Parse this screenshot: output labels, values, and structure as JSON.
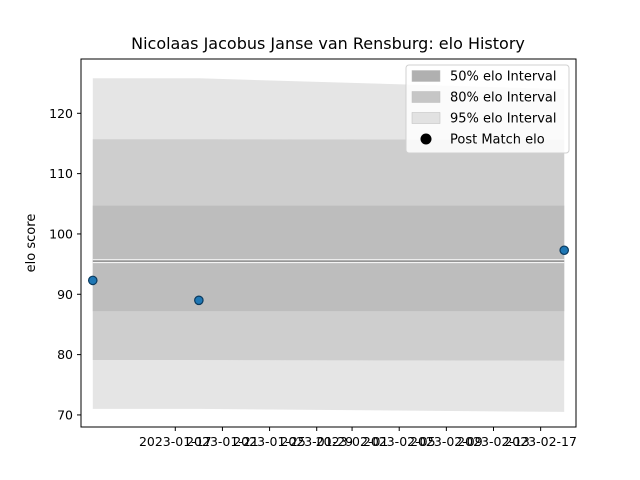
{
  "chart_data": {
    "type": "area",
    "title": "Nicolaas Jacobus Janse van Rensburg: elo History",
    "xlabel": "",
    "ylabel": "elo score",
    "xlim": [
      "2023-01-09",
      "2023-02-20"
    ],
    "ylim": [
      68,
      129
    ],
    "x_ticks": [
      "2023-01-17",
      "2023-01-21",
      "2023-01-25",
      "2023-01-29",
      "2023-02-01",
      "2023-02-05",
      "2023-02-09",
      "2023-02-13",
      "2023-02-17"
    ],
    "x_tick_labels": [
      "2023-01-17",
      "2023-01-21",
      "2023-01-25",
      "2023-01-29",
      "2023-02-01",
      "2023-02-05",
      "2023-02-09",
      "2023-02-13",
      "2023-02-17"
    ],
    "y_ticks": [
      70,
      80,
      90,
      100,
      110,
      120
    ],
    "grid": false,
    "legend_position": "upper right",
    "legend": [
      {
        "label": "50% elo Interval",
        "kind": "band"
      },
      {
        "label": "80% elo Interval",
        "kind": "band"
      },
      {
        "label": "95% elo Interval",
        "kind": "band"
      },
      {
        "label": "Post Match elo",
        "kind": "marker"
      }
    ],
    "x": [
      "2023-01-10",
      "2023-01-19",
      "2023-02-19"
    ],
    "mean_line": [
      95.5,
      95.5,
      95.5
    ],
    "bands": [
      {
        "name": "95% elo Interval",
        "lower": [
          71.0,
          71.0,
          70.5
        ],
        "upper": [
          125.8,
          125.8,
          124.0
        ],
        "color": "#e5e5e5"
      },
      {
        "name": "80% elo Interval",
        "lower": [
          79.1,
          79.1,
          79.0
        ],
        "upper": [
          115.7,
          115.7,
          115.6
        ],
        "color": "#cecece"
      },
      {
        "name": "50% elo Interval",
        "lower": [
          87.2,
          87.2,
          87.2
        ],
        "upper": [
          104.7,
          104.7,
          104.7
        ],
        "color": "#bdbdbd"
      }
    ],
    "points": [
      {
        "x": "2023-01-10",
        "y": 92.3
      },
      {
        "x": "2023-01-19",
        "y": 89.0
      },
      {
        "x": "2023-02-19",
        "y": 97.3
      }
    ],
    "colors": {
      "point": "#1f77b4",
      "point_edge": "#0b3a5e",
      "mean": "#888888"
    }
  }
}
